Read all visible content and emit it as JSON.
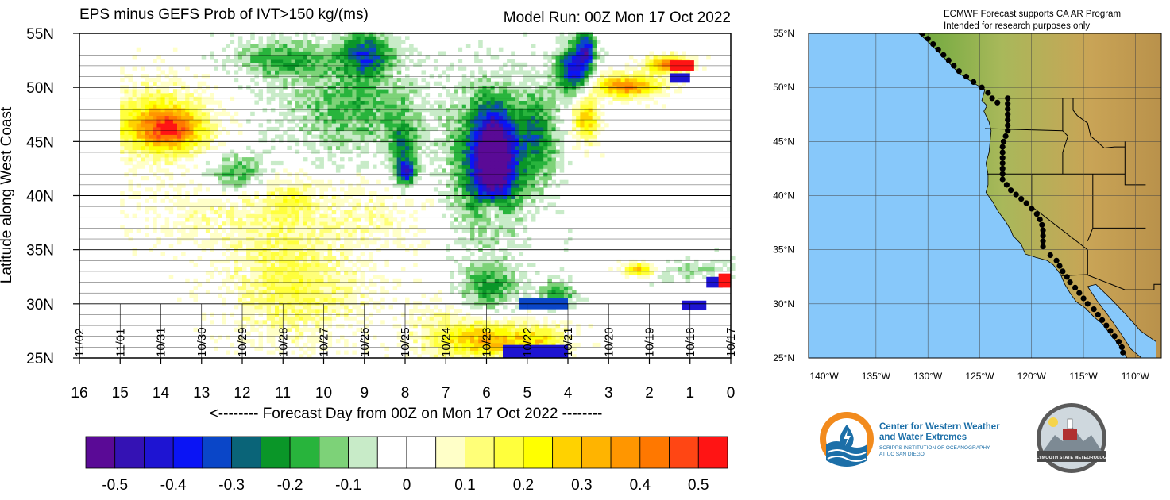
{
  "chart_data": [
    {
      "type": "heatmap",
      "title": "EPS minus GEFS Prob of IVT>150 kg/(ms)",
      "subtitle": "Model Run: 00Z Mon 17 Oct 2022",
      "xlabel": "<-------- Forecast Day from 00Z on Mon 17 Oct 2022 --------",
      "ylabel": "Latitude along West Coast",
      "xlim": [
        16,
        0
      ],
      "ylim": [
        25,
        55
      ],
      "x_ticks": [
        "16",
        "15",
        "14",
        "13",
        "12",
        "11",
        "10",
        "9",
        "8",
        "7",
        "6",
        "5",
        "4",
        "3",
        "2",
        "1",
        "0"
      ],
      "y_ticks": [
        "25N",
        "30N",
        "35N",
        "40N",
        "45N",
        "50N",
        "55N"
      ],
      "date_labels": [
        {
          "day": 16,
          "label": "11/02"
        },
        {
          "day": 15,
          "label": "11/01"
        },
        {
          "day": 14,
          "label": "10/31"
        },
        {
          "day": 13,
          "label": "10/30"
        },
        {
          "day": 12,
          "label": "10/29"
        },
        {
          "day": 11,
          "label": "10/28"
        },
        {
          "day": 10,
          "label": "10/27"
        },
        {
          "day": 9,
          "label": "10/26"
        },
        {
          "day": 8,
          "label": "10/25"
        },
        {
          "day": 7,
          "label": "10/24"
        },
        {
          "day": 6,
          "label": "10/23"
        },
        {
          "day": 5,
          "label": "10/22"
        },
        {
          "day": 4,
          "label": "10/21"
        },
        {
          "day": 3,
          "label": "10/20"
        },
        {
          "day": 2,
          "label": "10/19"
        },
        {
          "day": 1,
          "label": "10/18"
        },
        {
          "day": 0,
          "label": "10/17"
        }
      ],
      "grid": true,
      "blobs": [
        {
          "day": 14.2,
          "lat": 46.5,
          "rday": 1.2,
          "rlat": 3.2,
          "value": 0.25
        },
        {
          "day": 13.8,
          "lat": 46.0,
          "rday": 0.7,
          "rlat": 1.6,
          "value": 0.32
        },
        {
          "day": 11.0,
          "lat": 32.5,
          "rday": 1.3,
          "rlat": 6.0,
          "value": 0.14
        },
        {
          "day": 10.9,
          "lat": 39.5,
          "rday": 0.6,
          "rlat": 1.8,
          "value": 0.12
        },
        {
          "day": 8.8,
          "lat": 38.0,
          "rday": 1.3,
          "rlat": 3.0,
          "value": 0.08
        },
        {
          "day": 9.3,
          "lat": 48.0,
          "rday": 1.7,
          "rlat": 4.0,
          "value": -0.16
        },
        {
          "day": 9.0,
          "lat": 53.0,
          "rday": 0.6,
          "rlat": 2.0,
          "value": -0.3
        },
        {
          "day": 11.0,
          "lat": 52.5,
          "rday": 1.2,
          "rlat": 1.6,
          "value": -0.18
        },
        {
          "day": 12.2,
          "lat": 42.0,
          "rday": 0.7,
          "rlat": 1.6,
          "value": -0.18
        },
        {
          "day": 8.1,
          "lat": 44.0,
          "rday": 0.3,
          "rlat": 3.0,
          "value": -0.22
        },
        {
          "day": 8.0,
          "lat": 42.0,
          "rday": 0.2,
          "rlat": 1.0,
          "value": -0.35
        },
        {
          "day": 5.85,
          "lat": 43.5,
          "rday": 0.45,
          "rlat": 4.0,
          "value": -0.5
        },
        {
          "day": 6.0,
          "lat": 43.0,
          "rday": 0.9,
          "rlat": 6.0,
          "value": -0.3
        },
        {
          "day": 4.8,
          "lat": 45.5,
          "rday": 0.5,
          "rlat": 4.0,
          "value": -0.22
        },
        {
          "day": 3.9,
          "lat": 51.5,
          "rday": 0.4,
          "rlat": 2.2,
          "value": -0.42
        },
        {
          "day": 3.6,
          "lat": 53.5,
          "rday": 0.2,
          "rlat": 1.5,
          "value": -0.35
        },
        {
          "day": 2.6,
          "lat": 50.0,
          "rday": 0.8,
          "rlat": 1.0,
          "value": 0.4
        },
        {
          "day": 1.6,
          "lat": 52.0,
          "rday": 0.5,
          "rlat": 0.7,
          "value": 0.45
        },
        {
          "day": 3.6,
          "lat": 47.0,
          "rday": 0.3,
          "rlat": 2.0,
          "value": 0.3
        },
        {
          "day": 6.0,
          "lat": 26.5,
          "rday": 1.0,
          "rlat": 1.6,
          "value": 0.3
        },
        {
          "day": 4.7,
          "lat": 26.5,
          "rday": 0.7,
          "rlat": 1.5,
          "value": 0.2
        },
        {
          "day": 7.2,
          "lat": 27.5,
          "rday": 0.8,
          "rlat": 2.5,
          "value": 0.1
        },
        {
          "day": 6.0,
          "lat": 31.5,
          "rday": 0.7,
          "rlat": 2.0,
          "value": -0.2
        },
        {
          "day": 4.3,
          "lat": 30.8,
          "rday": 0.4,
          "rlat": 1.2,
          "value": -0.2
        },
        {
          "day": 2.3,
          "lat": 33.0,
          "rday": 0.35,
          "rlat": 0.6,
          "value": 0.3
        },
        {
          "day": 5.9,
          "lat": 38.5,
          "rday": 0.3,
          "rlat": 1.5,
          "value": 0.2
        },
        {
          "day": 13.0,
          "lat": 38.0,
          "rday": 2.0,
          "rlat": 3.0,
          "value": 0.06
        },
        {
          "day": 9.8,
          "lat": 30.5,
          "rday": 1.4,
          "rlat": 3.0,
          "value": 0.06
        },
        {
          "day": 1.0,
          "lat": 33.0,
          "rday": 0.9,
          "rlat": 1.0,
          "value": -0.1
        }
      ],
      "bars": [
        {
          "day_from": 5.6,
          "day_to": 4.0,
          "lat_from": 25.0,
          "lat_to": 26.2,
          "value": -0.42
        },
        {
          "day_from": 5.2,
          "day_to": 4.0,
          "lat_from": 29.5,
          "lat_to": 30.5,
          "value": -0.32
        },
        {
          "day_from": 1.2,
          "day_to": 0.6,
          "lat_from": 29.4,
          "lat_to": 30.3,
          "value": -0.42
        },
        {
          "day_from": 0.6,
          "day_to": 0.2,
          "lat_from": 31.5,
          "lat_to": 32.5,
          "value": -0.42
        },
        {
          "day_from": 0.3,
          "day_to": 0.0,
          "lat_from": 31.5,
          "lat_to": 32.8,
          "value": 0.5
        },
        {
          "day_from": 1.5,
          "day_to": 0.9,
          "lat_from": 51.5,
          "lat_to": 52.5,
          "value": 0.5
        },
        {
          "day_from": 1.5,
          "day_to": 1.0,
          "lat_from": 50.5,
          "lat_to": 51.3,
          "value": -0.42
        }
      ]
    },
    {
      "type": "colorbar",
      "labels": [
        "-0.5",
        "-0.4",
        "-0.3",
        "-0.2",
        "-0.1",
        "0",
        "0.1",
        "0.2",
        "0.3",
        "0.4",
        "0.5"
      ],
      "colors": [
        "#5a0a96",
        "#3412b4",
        "#1e14d2",
        "#0a14f5",
        "#0a46c8",
        "#0a6478",
        "#0a9628",
        "#28b43c",
        "#7dd278",
        "#c8ebc8",
        "#ffffff",
        "#ffffff",
        "#ffffc8",
        "#ffff78",
        "#ffff3c",
        "#ffff00",
        "#ffd200",
        "#ffb400",
        "#ff9600",
        "#ff7800",
        "#ff4614",
        "#ff1414"
      ]
    },
    {
      "type": "map",
      "header": [
        "ECMWF Forecast supports CA AR Program",
        "Intended for research purposes only"
      ],
      "lat_ticks": [
        "25°N",
        "30°N",
        "35°N",
        "40°N",
        "45°N",
        "50°N",
        "55°N"
      ],
      "lon_ticks": [
        "140°W",
        "135°W",
        "130°W",
        "125°W",
        "120°W",
        "115°W",
        "110°W"
      ],
      "lon_range": [
        -141.5,
        -107.5
      ],
      "lat_range": [
        25,
        55
      ],
      "coast_points": [
        [
          -130.5,
          55.0
        ],
        [
          -130.0,
          54.5
        ],
        [
          -129.5,
          54.0
        ],
        [
          -129.0,
          53.5
        ],
        [
          -128.5,
          53.0
        ],
        [
          -128.0,
          52.5
        ],
        [
          -127.5,
          52.0
        ],
        [
          -127.0,
          51.5
        ],
        [
          -126.3,
          51.0
        ],
        [
          -125.6,
          50.5
        ],
        [
          -124.8,
          50.0
        ],
        [
          -124.2,
          49.5
        ],
        [
          -123.8,
          49.0
        ],
        [
          -123.3,
          48.6
        ],
        [
          -122.3,
          49.0
        ],
        [
          -122.3,
          48.5
        ],
        [
          -122.3,
          48.0
        ],
        [
          -122.3,
          47.5
        ],
        [
          -122.3,
          47.0
        ],
        [
          -122.3,
          46.5
        ],
        [
          -122.3,
          46.0
        ],
        [
          -122.5,
          45.5
        ],
        [
          -122.7,
          45.0
        ],
        [
          -122.8,
          44.5
        ],
        [
          -122.8,
          44.0
        ],
        [
          -122.8,
          43.5
        ],
        [
          -122.8,
          43.0
        ],
        [
          -122.8,
          42.5
        ],
        [
          -122.8,
          42.0
        ],
        [
          -122.8,
          41.5
        ],
        [
          -122.4,
          41.0
        ],
        [
          -122.0,
          40.5
        ],
        [
          -121.5,
          40.1
        ],
        [
          -121.0,
          39.7
        ],
        [
          -120.5,
          39.3
        ],
        [
          -120.0,
          38.8
        ],
        [
          -119.5,
          38.3
        ],
        [
          -119.2,
          37.8
        ],
        [
          -119.0,
          37.3
        ],
        [
          -118.9,
          36.8
        ],
        [
          -118.9,
          36.3
        ],
        [
          -118.9,
          35.8
        ],
        [
          -118.9,
          35.3
        ],
        [
          -118.2,
          34.5
        ],
        [
          -117.6,
          34.0
        ],
        [
          -117.3,
          33.5
        ],
        [
          -117.0,
          33.0
        ],
        [
          -116.6,
          32.5
        ],
        [
          -116.3,
          32.0
        ],
        [
          -115.8,
          31.5
        ],
        [
          -115.4,
          31.0
        ],
        [
          -115.0,
          30.5
        ],
        [
          -114.6,
          30.0
        ],
        [
          -114.0,
          29.5
        ],
        [
          -113.6,
          29.0
        ],
        [
          -113.2,
          28.5
        ],
        [
          -112.8,
          28.0
        ],
        [
          -112.4,
          27.5
        ],
        [
          -112.0,
          27.0
        ],
        [
          -111.6,
          26.5
        ],
        [
          -111.3,
          26.0
        ],
        [
          -111.2,
          25.5
        ]
      ]
    }
  ],
  "logos": {
    "cw3e_line1": "Center for Western Weather",
    "cw3e_line2": "and Water Extremes",
    "cw3e_line3": "SCRIPPS INSTITUTION OF OCEANOGRAPHY",
    "cw3e_line4": "AT UC SAN DIEGO",
    "psu_text": "PLYMOUTH STATE METEOROLOGY"
  },
  "colors": {
    "ocean": "#87c8fa",
    "land_low": "#7ab44a",
    "land_high": "#c8a050",
    "cw3e_orange": "#f28b1e",
    "cw3e_blue": "#1c6fa8"
  }
}
